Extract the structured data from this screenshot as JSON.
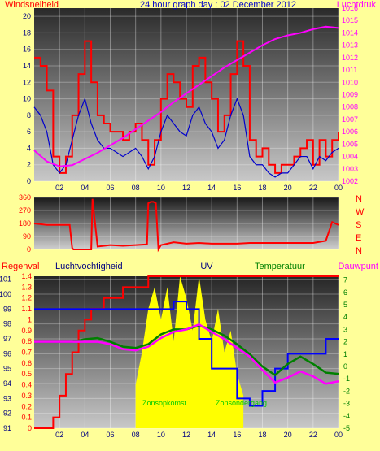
{
  "colors": {
    "page_bg": "#ffff99",
    "wind_speed": "#ff0000",
    "wind_gust_avg": "#0000cc",
    "pressure": "#ff00ff",
    "direction": "#ff0000",
    "rain": "#ff0000",
    "humidity": "#0000ff",
    "uv": "#ffff00",
    "temperature": "#008000",
    "dewpoint": "#ff00ff"
  },
  "chart_data": [
    {
      "type": "line",
      "title": "24 hour graph day : 02 December 2012",
      "left_label": "Windsnelheid",
      "right_label": "Luchtdruk",
      "x_ticks": [
        "02",
        "04",
        "06",
        "08",
        "10",
        "12",
        "14",
        "16",
        "18",
        "20",
        "22",
        "00"
      ],
      "y_left_ticks": [
        "0",
        "2",
        "4",
        "6",
        "8",
        "10",
        "12",
        "14",
        "16",
        "18",
        "20"
      ],
      "y_left_range": [
        0,
        21
      ],
      "y_right_ticks": [
        "1002",
        "1003",
        "1004",
        "1005",
        "1006",
        "1007",
        "1008",
        "1009",
        "1010",
        "1011",
        "1012",
        "1013",
        "1014",
        "1015",
        "1016"
      ],
      "y_right_range": [
        1002,
        1016
      ],
      "series": [
        {
          "role": "wind_speed",
          "x": [
            0,
            0.5,
            1,
            1.5,
            2,
            2.5,
            3,
            3.5,
            4,
            4.5,
            5,
            5.5,
            6,
            6.5,
            7,
            7.5,
            8,
            8.5,
            9,
            9.5,
            10,
            10.5,
            11,
            11.5,
            12,
            12.5,
            13,
            13.5,
            14,
            14.5,
            15,
            15.5,
            16,
            16.5,
            17,
            17.5,
            18,
            18.5,
            19,
            19.5,
            20,
            20.5,
            21,
            21.5,
            22,
            22.5,
            23,
            23.5,
            24
          ],
          "y": [
            15,
            14,
            11,
            3,
            1,
            3,
            8,
            13,
            17,
            12,
            8,
            7,
            6,
            6,
            5,
            6,
            7,
            5,
            2,
            5,
            10,
            13,
            12,
            10,
            9,
            14,
            15,
            12,
            10,
            6,
            8,
            13,
            17,
            14,
            5,
            3,
            4,
            2,
            1,
            2,
            2,
            3,
            4,
            5,
            2,
            5,
            3,
            5,
            6
          ]
        },
        {
          "role": "wind_avg",
          "x": [
            0,
            0.5,
            1,
            1.5,
            2,
            2.5,
            3,
            3.5,
            4,
            4.5,
            5,
            5.5,
            6,
            6.5,
            7,
            7.5,
            8,
            8.5,
            9,
            9.5,
            10,
            10.5,
            11,
            11.5,
            12,
            12.5,
            13,
            13.5,
            14,
            14.5,
            15,
            15.5,
            16,
            16.5,
            17,
            17.5,
            18,
            18.5,
            19,
            19.5,
            20,
            20.5,
            21,
            21.5,
            22,
            22.5,
            23,
            23.5,
            24
          ],
          "y": [
            9,
            8,
            6,
            2,
            1,
            2,
            5,
            8,
            10,
            7,
            5,
            4,
            4,
            3.5,
            3,
            3.5,
            4,
            3,
            1.5,
            3,
            6,
            8,
            7,
            6,
            5.5,
            8,
            9,
            7,
            6,
            4,
            5,
            8,
            10,
            8,
            3,
            2,
            2,
            1,
            0.5,
            1,
            1,
            2,
            3,
            3,
            1.5,
            3,
            2.5,
            3.5,
            4
          ]
        },
        {
          "role": "pressure",
          "x": [
            0,
            1,
            2,
            3,
            4,
            5,
            6,
            7,
            8,
            9,
            10,
            11,
            12,
            13,
            14,
            15,
            16,
            17,
            18,
            19,
            20,
            21,
            22,
            23,
            24
          ],
          "y": [
            1004.5,
            1003.6,
            1003.2,
            1003.3,
            1003.8,
            1004.3,
            1004.9,
            1005.5,
            1006.2,
            1006.9,
            1007.6,
            1008.4,
            1009.1,
            1009.8,
            1010.5,
            1011.2,
            1011.8,
            1012.4,
            1013.0,
            1013.5,
            1013.8,
            1014.0,
            1014.3,
            1014.5,
            1014.4
          ]
        }
      ]
    },
    {
      "type": "line",
      "y_left_ticks": [
        "0",
        "90",
        "180",
        "270",
        "360"
      ],
      "y_right_labels": [
        "N",
        "W",
        "S",
        "E",
        "N"
      ],
      "y_range": [
        0,
        360
      ],
      "series": [
        {
          "role": "wind_direction",
          "x": [
            0,
            1,
            2,
            2.8,
            3,
            3.1,
            4,
            4.5,
            4.6,
            5,
            6,
            7,
            8,
            8.9,
            9,
            9.2,
            9.4,
            9.6,
            9.8,
            10,
            11,
            12,
            13,
            14,
            15,
            16,
            17,
            18,
            19,
            20,
            21,
            22,
            23,
            23.5,
            24
          ],
          "y": [
            180,
            170,
            170,
            170,
            10,
            0,
            0,
            0,
            350,
            20,
            30,
            25,
            30,
            35,
            320,
            330,
            330,
            320,
            0,
            30,
            50,
            40,
            45,
            40,
            40,
            40,
            45,
            45,
            45,
            45,
            45,
            45,
            60,
            190,
            170
          ]
        }
      ]
    },
    {
      "type": "line",
      "labels": [
        "Regenval",
        "Luchtvochtigheid",
        "UV",
        "Temperatuur",
        "Dauwpunt"
      ],
      "annotations": [
        "Zonsopkomst",
        "Zonsondergang"
      ],
      "y_left_ticks": [
        "91",
        "92",
        "93",
        "94",
        "95",
        "96",
        "97",
        "98",
        "99",
        "100",
        "101"
      ],
      "y_left_range": [
        91,
        101.2
      ],
      "y_mid_ticks": [
        "0",
        "0.1",
        "0.2",
        "0.3",
        "0.4",
        "0.5",
        "0.6",
        "0.7",
        "0.8",
        "0.9",
        "1",
        "1.1",
        "1.2",
        "1.3",
        "1.4"
      ],
      "y_mid_range": [
        0,
        1.4
      ],
      "y_right_ticks": [
        "-5",
        "-4",
        "-3",
        "-2",
        "-1",
        "0",
        "1",
        "2",
        "3",
        "4",
        "5",
        "6",
        "7"
      ],
      "y_right_range": [
        -5,
        7.3
      ],
      "series": [
        {
          "role": "rain",
          "x": [
            0,
            0.5,
            1,
            1.5,
            2,
            2.5,
            3,
            3.5,
            4,
            4.5,
            5,
            5.5,
            6,
            7,
            8,
            9,
            10,
            24
          ],
          "y": [
            0,
            0,
            0,
            0.1,
            0.3,
            0.5,
            0.7,
            0.9,
            1.0,
            1.1,
            1.1,
            1.2,
            1.2,
            1.3,
            1.3,
            1.4,
            1.4,
            1.4
          ]
        },
        {
          "role": "humidity",
          "x": [
            0,
            1,
            2,
            3,
            4,
            5,
            6,
            7,
            8,
            9,
            10,
            11,
            12,
            13,
            14,
            15,
            16,
            17,
            18,
            19,
            20,
            21,
            22,
            23,
            24
          ],
          "y": [
            99,
            99,
            99,
            99,
            99,
            99,
            99,
            99,
            99,
            99,
            99,
            99.5,
            99,
            97,
            95,
            95,
            93,
            92.5,
            93.5,
            95,
            96,
            96,
            96,
            97,
            97
          ]
        },
        {
          "role": "uv",
          "x": [
            8,
            8.5,
            9,
            9.5,
            10,
            10.5,
            11,
            11.5,
            12,
            12.5,
            13,
            13.5,
            14,
            14.5,
            15,
            15.5,
            16,
            16.5
          ],
          "y": [
            0.4,
            0.7,
            1.1,
            1.3,
            1.0,
            1.3,
            0.8,
            1.4,
            1.2,
            0.9,
            1.4,
            1.0,
            0.8,
            1.1,
            0.7,
            0.9,
            0.5,
            0.3
          ]
        },
        {
          "role": "temperature",
          "x": [
            0,
            1,
            2,
            3,
            4,
            5,
            6,
            7,
            8,
            9,
            10,
            11,
            12,
            13,
            14,
            15,
            16,
            17,
            18,
            19,
            20,
            21,
            22,
            23,
            24
          ],
          "y": [
            2,
            2,
            2,
            2,
            2.2,
            2.3,
            2,
            1.6,
            1.5,
            1.8,
            2.6,
            3.0,
            3.0,
            3.3,
            3.0,
            2.5,
            1.8,
            1.0,
            0,
            -0.7,
            0.2,
            0.8,
            0.2,
            -0.5,
            -0.6
          ]
        },
        {
          "role": "dewpoint",
          "x": [
            0,
            1,
            2,
            3,
            4,
            5,
            6,
            7,
            8,
            9,
            10,
            11,
            12,
            13,
            14,
            15,
            16,
            17,
            18,
            19,
            20,
            21,
            22,
            23,
            24
          ],
          "y": [
            2,
            2,
            2,
            2,
            2,
            2,
            1.8,
            1.4,
            1.3,
            1.6,
            2.3,
            2.8,
            3.0,
            3.4,
            2.8,
            2.2,
            1.5,
            0.8,
            -0.3,
            -1.3,
            -0.9,
            -0.4,
            -0.8,
            -1.4,
            -1.2
          ]
        }
      ]
    }
  ]
}
